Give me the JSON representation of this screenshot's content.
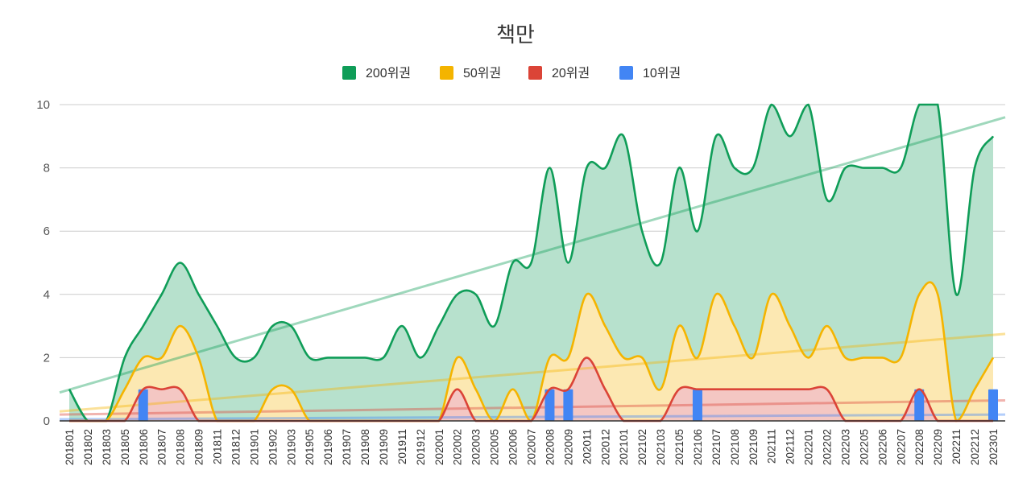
{
  "chart_data": {
    "type": "area",
    "title": "책만",
    "xlabel": "",
    "ylabel": "",
    "ylim": [
      0,
      10
    ],
    "yticks": [
      0,
      2,
      4,
      6,
      8,
      10
    ],
    "legend_position": "top",
    "gridlines": true,
    "categories": [
      "201801",
      "201802",
      "201803",
      "201805",
      "201806",
      "201807",
      "201808",
      "201809",
      "201811",
      "201812",
      "201901",
      "201902",
      "201903",
      "201905",
      "201906",
      "201907",
      "201908",
      "201909",
      "201911",
      "201912",
      "202001",
      "202002",
      "202003",
      "202005",
      "202006",
      "202007",
      "202008",
      "202009",
      "202011",
      "202012",
      "202101",
      "202102",
      "202103",
      "202105",
      "202106",
      "202107",
      "202108",
      "202109",
      "202111",
      "202112",
      "202201",
      "202202",
      "202203",
      "202205",
      "202206",
      "202207",
      "202208",
      "202209",
      "202211",
      "202212",
      "202301"
    ],
    "series": [
      {
        "name": "200위권",
        "color": "#0f9d58",
        "fill": "#b7e1cd",
        "kind": "area",
        "values": [
          1,
          0,
          0,
          2,
          3,
          4,
          5,
          4,
          3,
          2,
          2,
          3,
          3,
          2,
          2,
          2,
          2,
          2,
          3,
          2,
          3,
          4,
          4,
          3,
          5,
          5,
          8,
          5,
          8,
          8,
          9,
          6,
          5,
          8,
          6,
          9,
          8,
          8,
          10,
          9,
          10,
          7,
          8,
          8,
          8,
          8,
          10,
          10,
          4,
          8,
          9
        ],
        "trend": [
          0.9,
          9.6
        ]
      },
      {
        "name": "50위권",
        "color": "#f4b400",
        "fill": "#fce8b2",
        "kind": "area",
        "values": [
          0,
          0,
          0,
          1,
          2,
          2,
          3,
          2,
          0,
          0,
          0,
          1,
          1,
          0,
          0,
          0,
          0,
          0,
          0,
          0,
          0,
          2,
          1,
          0,
          1,
          0,
          2,
          2,
          4,
          3,
          2,
          2,
          1,
          3,
          2,
          4,
          3,
          2,
          4,
          3,
          2,
          3,
          2,
          2,
          2,
          2,
          4,
          4,
          0,
          1,
          2
        ],
        "trend": [
          0.3,
          2.75
        ]
      },
      {
        "name": "20위권",
        "color": "#db4437",
        "fill": "#f4c7c3",
        "kind": "area",
        "values": [
          0,
          0,
          0,
          0,
          1,
          1,
          1,
          0,
          0,
          0,
          0,
          0,
          0,
          0,
          0,
          0,
          0,
          0,
          0,
          0,
          0,
          1,
          0,
          0,
          0,
          0,
          1,
          1,
          2,
          1,
          0,
          0,
          0,
          1,
          1,
          1,
          1,
          1,
          1,
          1,
          1,
          1,
          0,
          0,
          0,
          0,
          1,
          0,
          0,
          0,
          0
        ],
        "trend": [
          0.2,
          0.65
        ]
      },
      {
        "name": "10위권",
        "color": "#4285f4",
        "fill": "#4285f4",
        "kind": "bar",
        "values": [
          0,
          0,
          0,
          0,
          1,
          0,
          0,
          0,
          0,
          0,
          0,
          0,
          0,
          0,
          0,
          0,
          0,
          0,
          0,
          0,
          0,
          0,
          0,
          0,
          0,
          0,
          1,
          1,
          0,
          0,
          0,
          0,
          0,
          0,
          1,
          0,
          0,
          0,
          0,
          0,
          0,
          0,
          0,
          0,
          0,
          0,
          1,
          0,
          0,
          0,
          1
        ],
        "trend": [
          0.05,
          0.2
        ]
      }
    ]
  }
}
